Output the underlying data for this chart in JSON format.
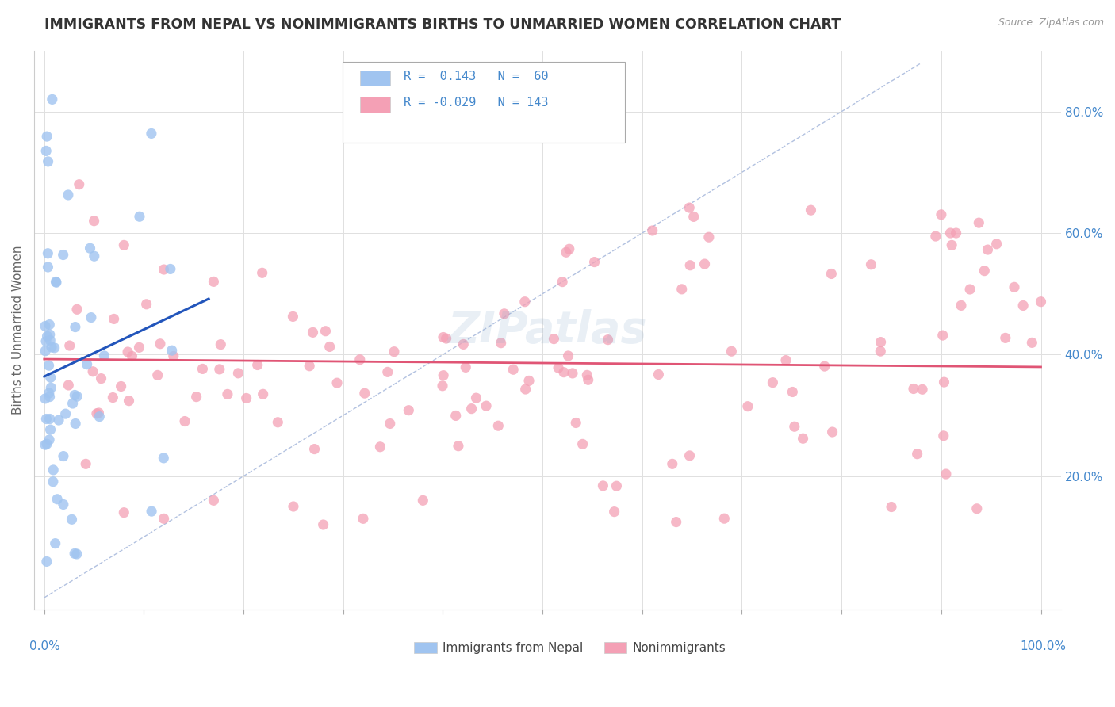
{
  "title": "IMMIGRANTS FROM NEPAL VS NONIMMIGRANTS BIRTHS TO UNMARRIED WOMEN CORRELATION CHART",
  "source": "Source: ZipAtlas.com",
  "ylabel": "Births to Unmarried Women",
  "legend_entries": [
    {
      "label": "Immigrants from Nepal",
      "color": "#a8c8f0",
      "R": 0.143,
      "N": 60
    },
    {
      "label": "Nonimmigrants",
      "color": "#f4a0b5",
      "R": -0.029,
      "N": 143
    }
  ],
  "watermark": "ZIPatlas",
  "blue_color": "#a0c4f0",
  "pink_color": "#f4a0b5",
  "blue_line_color": "#2255bb",
  "pink_line_color": "#e05575",
  "diag_color": "#aabbdd",
  "background_color": "#ffffff",
  "grid_color": "#e0e0e0",
  "title_color": "#333333",
  "axis_label_color": "#4488cc",
  "ylabel_color": "#666666"
}
